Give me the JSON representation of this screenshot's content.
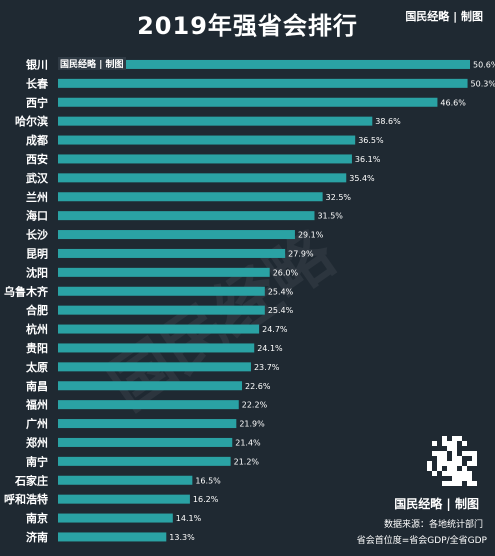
{
  "title": "2019年强省会排行",
  "brand": {
    "top": "国民经略 | 制图",
    "mini": "国民经略 | 制图",
    "bottom": "国民经略 | 制图",
    "watermark": "国民经略"
  },
  "footer": {
    "source": "数据来源：各地统计部门",
    "formula": "省会首位度=省会GDP/全省GDP"
  },
  "colors": {
    "background": "#1f2932",
    "bar": "#2aa2a4",
    "text": "#ffffff"
  },
  "chart_data": {
    "type": "bar",
    "orientation": "horizontal",
    "categories": [
      "银川",
      "长春",
      "西宁",
      "哈尔滨",
      "成都",
      "西安",
      "武汉",
      "兰州",
      "海口",
      "长沙",
      "昆明",
      "沈阳",
      "乌鲁木齐",
      "合肥",
      "杭州",
      "贵阳",
      "太原",
      "南昌",
      "福州",
      "广州",
      "郑州",
      "南宁",
      "石家庄",
      "呼和浩特",
      "南京",
      "济南"
    ],
    "values": [
      50.6,
      50.3,
      46.6,
      38.6,
      36.5,
      36.1,
      35.4,
      32.5,
      31.5,
      29.1,
      27.9,
      26.0,
      25.4,
      25.4,
      24.7,
      24.1,
      23.7,
      22.6,
      22.2,
      21.9,
      21.4,
      21.2,
      16.5,
      16.2,
      14.1,
      13.3
    ],
    "value_labels": [
      "50.6%",
      "50.3%",
      "46.6%",
      "38.6%",
      "36.5%",
      "36.1%",
      "35.4%",
      "32.5%",
      "31.5%",
      "29.1%",
      "27.9%",
      "26.0%",
      "25.4%",
      "25.4%",
      "24.7%",
      "24.1%",
      "23.7%",
      "22.6%",
      "22.2%",
      "21.9%",
      "21.4%",
      "21.2%",
      "16.5%",
      "16.2%",
      "14.1%",
      "13.3%"
    ],
    "xlim": [
      0,
      50.6
    ],
    "grid": false,
    "legend": "none"
  }
}
